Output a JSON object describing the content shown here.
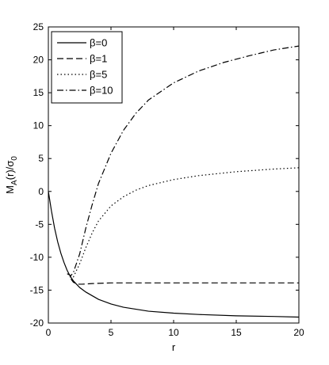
{
  "chart_data": {
    "type": "line",
    "xlabel": "r",
    "ylabel_main": "M",
    "ylabel_sub_a": "A",
    "ylabel_mid": "(r)/σ",
    "ylabel_sub_0": "0",
    "xlim": [
      0,
      20
    ],
    "ylim": [
      -20,
      25
    ],
    "xticks": [
      0,
      5,
      10,
      15,
      20
    ],
    "yticks": [
      -20,
      -15,
      -10,
      -5,
      0,
      5,
      10,
      15,
      20,
      25
    ],
    "grid": false,
    "legend_position": "top-left",
    "series": [
      {
        "name": "β=0",
        "dash": "solid",
        "points": [
          [
            0,
            0
          ],
          [
            0.25,
            -3
          ],
          [
            0.5,
            -5.6
          ],
          [
            0.75,
            -7.7
          ],
          [
            1.0,
            -9.4
          ],
          [
            1.25,
            -10.8
          ],
          [
            1.5,
            -12.0
          ],
          [
            1.75,
            -12.9
          ],
          [
            2.0,
            -13.6
          ],
          [
            2.5,
            -14.6
          ],
          [
            3,
            -15.3
          ],
          [
            4,
            -16.4
          ],
          [
            5,
            -17.1
          ],
          [
            6,
            -17.6
          ],
          [
            7,
            -17.9
          ],
          [
            8,
            -18.2
          ],
          [
            10,
            -18.5
          ],
          [
            12,
            -18.7
          ],
          [
            15,
            -18.9
          ],
          [
            18,
            -19.0
          ],
          [
            20,
            -19.1
          ]
        ]
      },
      {
        "name": "β=1",
        "dash": "dashed",
        "points": [
          [
            1.8,
            -13.3
          ],
          [
            2.0,
            -13.8
          ],
          [
            2.3,
            -14.1
          ],
          [
            2.7,
            -14.1
          ],
          [
            3.5,
            -14.0
          ],
          [
            5,
            -13.9
          ],
          [
            8,
            -13.9
          ],
          [
            12,
            -13.9
          ],
          [
            16,
            -13.9
          ],
          [
            20,
            -13.9
          ]
        ]
      },
      {
        "name": "β=5",
        "dash": "dotted",
        "points": [
          [
            1.7,
            -13.0
          ],
          [
            2.0,
            -13.0
          ],
          [
            2.5,
            -11.0
          ],
          [
            3,
            -8.5
          ],
          [
            3.5,
            -6.3
          ],
          [
            4,
            -4.5
          ],
          [
            5,
            -2.2
          ],
          [
            6,
            -0.8
          ],
          [
            7,
            0.2
          ],
          [
            8,
            0.9
          ],
          [
            10,
            1.8
          ],
          [
            12,
            2.4
          ],
          [
            15,
            3.0
          ],
          [
            18,
            3.4
          ],
          [
            20,
            3.6
          ]
        ]
      },
      {
        "name": "β=10",
        "dash": "dashdot",
        "points": [
          [
            1.5,
            -12.5
          ],
          [
            1.8,
            -12.8
          ],
          [
            2.0,
            -12.3
          ],
          [
            2.5,
            -9.5
          ],
          [
            3,
            -5.5
          ],
          [
            3.5,
            -2.0
          ],
          [
            4,
            1.2
          ],
          [
            5,
            5.8
          ],
          [
            6,
            9.3
          ],
          [
            7,
            11.9
          ],
          [
            8,
            13.9
          ],
          [
            10,
            16.5
          ],
          [
            12,
            18.3
          ],
          [
            14,
            19.6
          ],
          [
            16,
            20.6
          ],
          [
            18,
            21.5
          ],
          [
            20,
            22.1
          ]
        ]
      }
    ]
  }
}
